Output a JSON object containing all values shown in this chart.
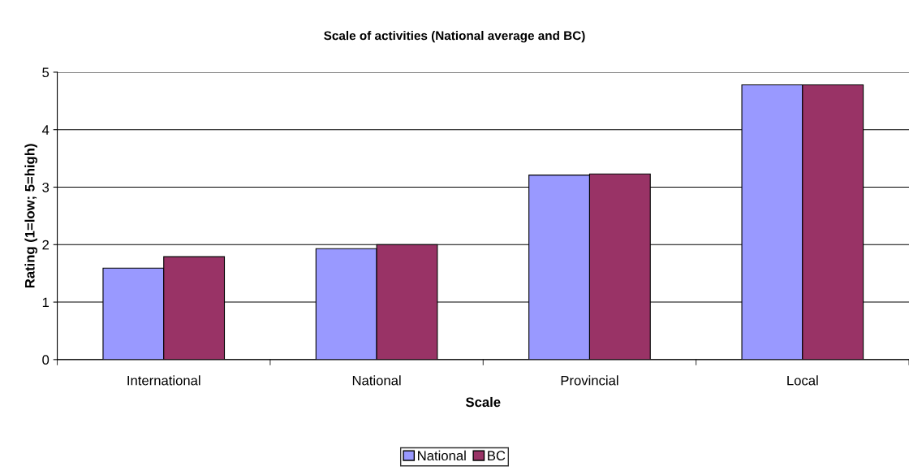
{
  "chart_data": {
    "type": "bar",
    "title": "Scale of activities (National average and BC)",
    "xlabel": "Scale",
    "ylabel": "Rating (1=low; 5=high)",
    "categories": [
      "International",
      "National",
      "Provincial",
      "Local"
    ],
    "series": [
      {
        "name": "National",
        "color": "#9999ff",
        "values": [
          1.59,
          1.93,
          3.21,
          4.78
        ]
      },
      {
        "name": "BC",
        "color": "#993366",
        "values": [
          1.79,
          2.0,
          3.23,
          4.78
        ]
      }
    ],
    "ylim": [
      0,
      5
    ],
    "yticks": [
      0,
      1,
      2,
      3,
      4,
      5
    ],
    "grid": "y",
    "legend": "bottom"
  }
}
